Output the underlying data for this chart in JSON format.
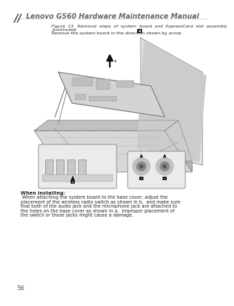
{
  "page_number": "56",
  "header_logo_text": "//",
  "header_title": "Lenovo G560 Hardware Maintenance Manual",
  "fig_caption1": "Figure  13.  Removal  steps  of  system  board  and  ExpressCard  slot  assembly",
  "fig_caption2": "(continued)",
  "instruction": "Remove the system board in the direction shown by arrow ",
  "arrow_num": "4",
  "wi_bold": "When installing:",
  "wi_text": " When attaching the system board to the base cover, adjust the placement of the wireless radio switch as shown in b,  and make sure that both of the audio jack and the microphone jack are attached to the holes on the base cover as shown in a.  Improper placement of the switch or those jacks might cause a damage.",
  "bg": "#ffffff",
  "text_dark": "#222222",
  "text_gray": "#555555",
  "header_text_color": "#666666",
  "line_color": "#aaaaaa",
  "laptop_fill": "#e0e0e0",
  "laptop_dark": "#b0b0b0",
  "laptop_outline": "#888888",
  "board_fill": "#d0d0d0",
  "board_dark": "#c0c0c0"
}
